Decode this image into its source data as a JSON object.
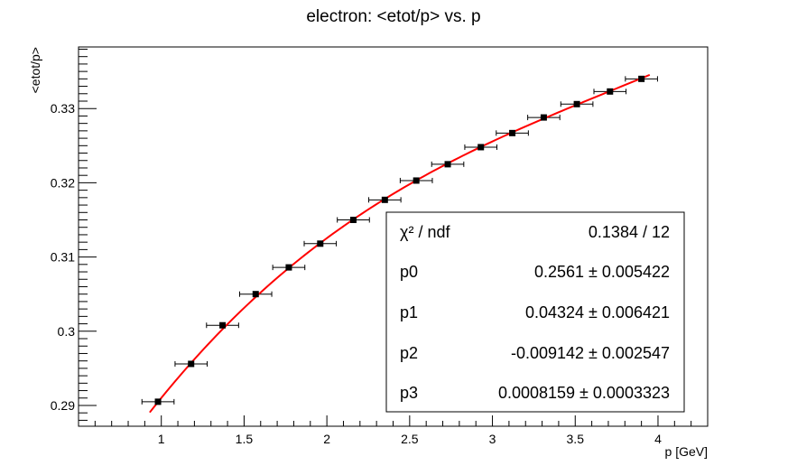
{
  "chart_data": {
    "type": "scatter",
    "title": "electron: <etot/p> vs. p",
    "xlabel": "p [GeV]",
    "ylabel": "<etot/p>",
    "xlim": [
      0.5,
      4.3
    ],
    "ylim": [
      0.2872,
      0.3383
    ],
    "x_ticks": [
      {
        "value": 1,
        "label": "1"
      },
      {
        "value": 1.5,
        "label": "1.5"
      },
      {
        "value": 2,
        "label": "2"
      },
      {
        "value": 2.5,
        "label": "2.5"
      },
      {
        "value": 3,
        "label": "3"
      },
      {
        "value": 3.5,
        "label": "3.5"
      },
      {
        "value": 4,
        "label": "4"
      }
    ],
    "y_ticks": [
      {
        "value": 0.29,
        "label": "0.29"
      },
      {
        "value": 0.3,
        "label": "0.3"
      },
      {
        "value": 0.31,
        "label": "0.31"
      },
      {
        "value": 0.32,
        "label": "0.32"
      },
      {
        "value": 0.33,
        "label": "0.33"
      }
    ],
    "series": [
      {
        "marker": "square",
        "x": [
          0.98,
          1.18,
          1.37,
          1.57,
          1.77,
          1.96,
          2.16,
          2.35,
          2.54,
          2.73,
          2.93,
          3.12,
          3.31,
          3.51,
          3.71,
          3.9
        ],
        "y": [
          0.2905,
          0.2956,
          0.3008,
          0.305,
          0.3086,
          0.3118,
          0.315,
          0.3177,
          0.3203,
          0.3225,
          0.3248,
          0.3267,
          0.3288,
          0.3306,
          0.3323,
          0.334
        ],
        "x_error": [
          0.097,
          0.097,
          0.097,
          0.097,
          0.097,
          0.097,
          0.097,
          0.097,
          0.097,
          0.097,
          0.097,
          0.097,
          0.097,
          0.097,
          0.097,
          0.097
        ],
        "color": "#000000"
      }
    ],
    "fit": {
      "function": "pol3",
      "x_range": [
        0.93,
        3.95
      ],
      "color": "#ff0000",
      "params": [
        0.2561,
        0.04324,
        -0.009142,
        0.0008159
      ]
    },
    "stats_box": {
      "rows": [
        {
          "name": "χ² / ndf",
          "value": "0.1384 / 12"
        },
        {
          "name": "p0",
          "value": "0.2561 ± 0.005422"
        },
        {
          "name": "p1",
          "value": "0.04324 ± 0.006421"
        },
        {
          "name": "p2",
          "value": "-0.009142 ± 0.002547"
        },
        {
          "name": "p3",
          "value": "0.0008159 ± 0.0003323"
        }
      ]
    },
    "grid": false
  }
}
